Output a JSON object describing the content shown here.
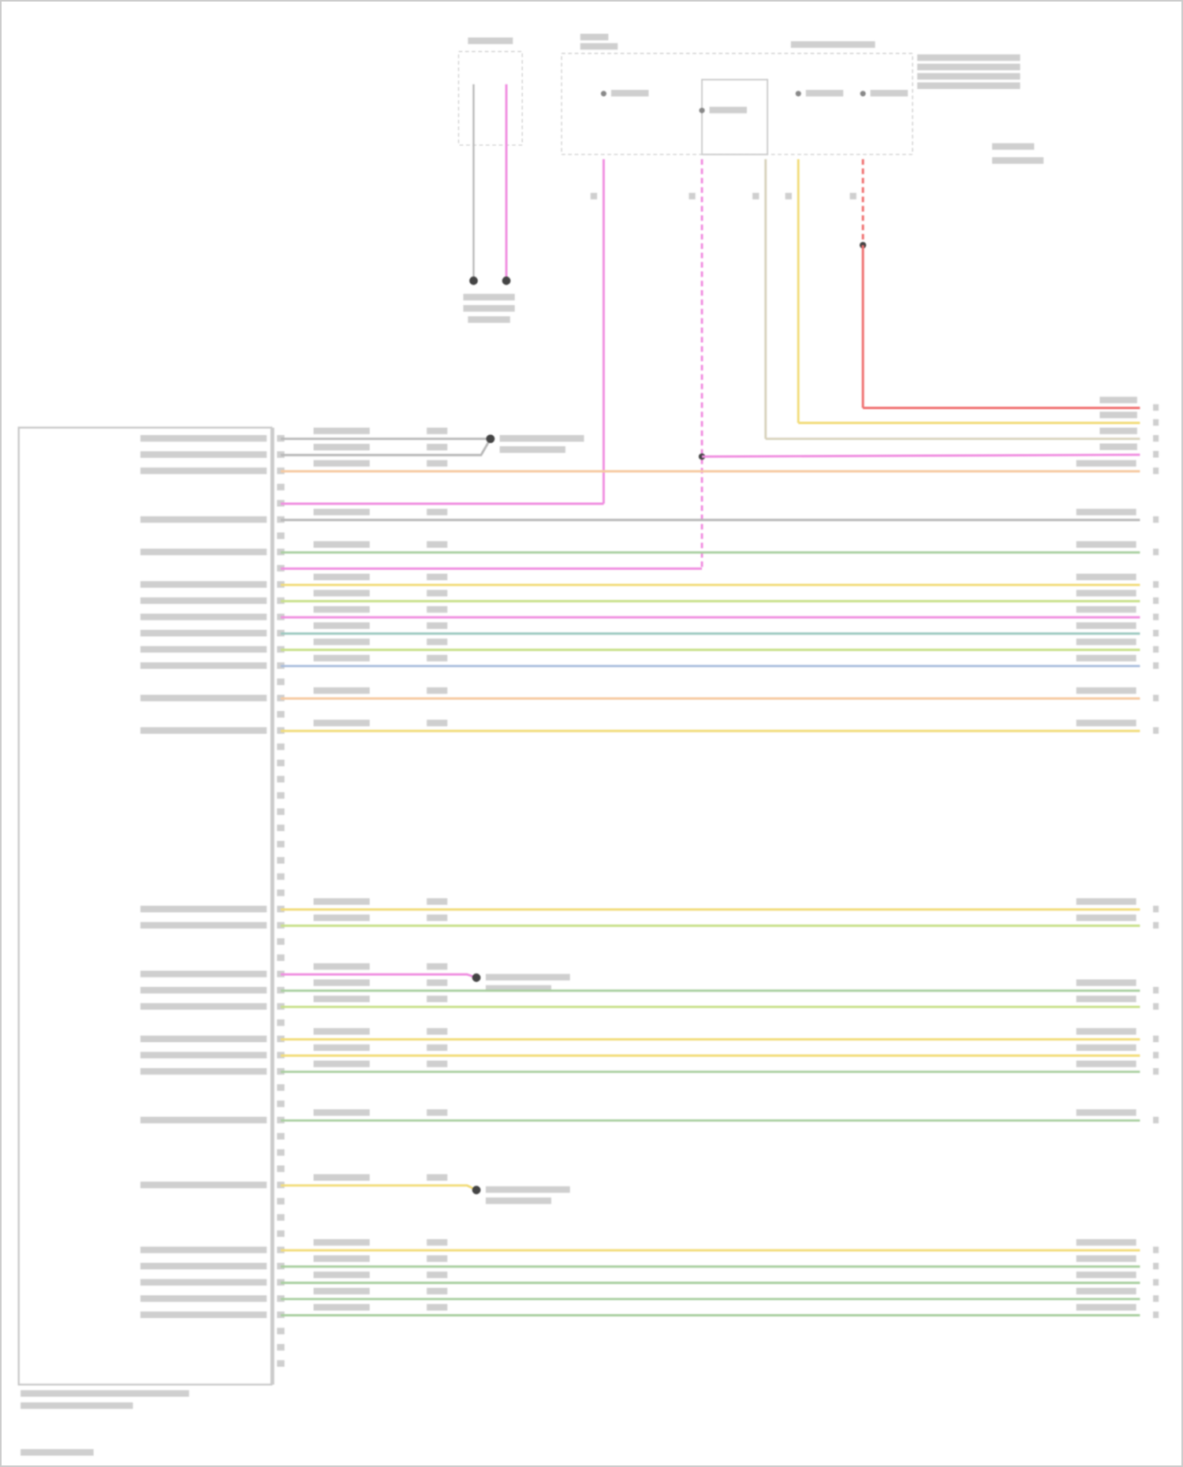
{
  "diagram": {
    "type": "wiring-schematic",
    "colors": {
      "gray": "#b8b8b8",
      "pink": "#f08ee0",
      "red": "#f07070",
      "yellow": "#f2dc7a",
      "orange": "#f6c9a0",
      "tan": "#d8d2bc",
      "green": "#a9cfa0",
      "lime": "#c8e08a",
      "teal": "#9cc8c0",
      "blue": "#a8bcdc",
      "outline": "#c8c8c8",
      "splice": "#444444"
    },
    "module_wires": [
      {
        "pin": 1,
        "color": "gray",
        "to": "splice-a"
      },
      {
        "pin": 2,
        "color": "gray",
        "to": "splice-a"
      },
      {
        "pin": 3,
        "color": "orange",
        "to": "right-5"
      },
      {
        "pin": 5,
        "color": "pink",
        "to": "top-connector-1"
      },
      {
        "pin": 6,
        "color": "gray",
        "to": "right-6"
      },
      {
        "pin": 8,
        "color": "green",
        "to": "right-7"
      },
      {
        "pin": 9,
        "color": "pink",
        "to": "top-connector-2"
      },
      {
        "pin": 10,
        "color": "yellow",
        "to": "right-8"
      },
      {
        "pin": 11,
        "color": "lime",
        "to": "right-9"
      },
      {
        "pin": 12,
        "color": "pink",
        "to": "right-10"
      },
      {
        "pin": 13,
        "color": "teal",
        "to": "right-11"
      },
      {
        "pin": 14,
        "color": "lime",
        "to": "right-12"
      },
      {
        "pin": 15,
        "color": "blue",
        "to": "right-13"
      },
      {
        "pin": 17,
        "color": "orange",
        "to": "right-14"
      },
      {
        "pin": 19,
        "color": "yellow",
        "to": "right-15"
      },
      {
        "pin": 30,
        "color": "yellow",
        "to": "right-16"
      },
      {
        "pin": 31,
        "color": "lime",
        "to": "right-17"
      },
      {
        "pin": 34,
        "color": "pink",
        "to": "splice-b"
      },
      {
        "pin": 35,
        "color": "green",
        "to": "right-18"
      },
      {
        "pin": 36,
        "color": "lime",
        "to": "right-19"
      },
      {
        "pin": 38,
        "color": "yellow",
        "to": "right-20"
      },
      {
        "pin": 39,
        "color": "yellow",
        "to": "right-21"
      },
      {
        "pin": 40,
        "color": "green",
        "to": "right-22"
      },
      {
        "pin": 43,
        "color": "green",
        "to": "right-23"
      },
      {
        "pin": 47,
        "color": "yellow",
        "to": "splice-c"
      },
      {
        "pin": 51,
        "color": "yellow",
        "to": "right-24"
      },
      {
        "pin": 52,
        "color": "green",
        "to": "right-25"
      },
      {
        "pin": 53,
        "color": "green",
        "to": "right-26"
      },
      {
        "pin": 54,
        "color": "green",
        "to": "right-27"
      },
      {
        "pin": 55,
        "color": "green",
        "to": "right-28"
      }
    ],
    "vertical_wires": [
      {
        "color": "pink",
        "from": "top-connector-1",
        "to": "pin-5"
      },
      {
        "color": "pink",
        "from": "top-connector-2",
        "to": "pin-9",
        "dashed": true,
        "splice_to": "right-4"
      },
      {
        "color": "tan",
        "from": "top-connector-3",
        "to": "right-3"
      },
      {
        "color": "yellow",
        "from": "top-connector-4",
        "to": "right-2"
      },
      {
        "color": "red",
        "from": "top-connector-5",
        "to": "right-1",
        "dashed_top": true
      }
    ],
    "module_pin_count": 58,
    "right_pin_count": 28
  }
}
